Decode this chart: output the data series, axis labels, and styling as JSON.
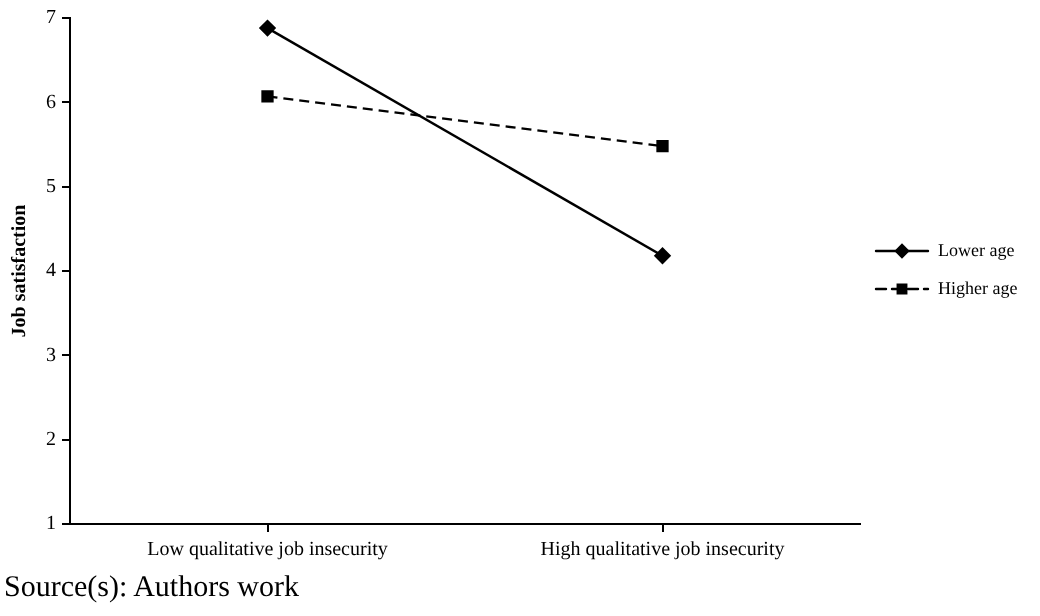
{
  "chart_data": {
    "type": "line",
    "ylabel": "Job satisfaction",
    "categories": [
      "Low qualitative job insecurity",
      "High qualitative job insecurity"
    ],
    "series": [
      {
        "name": "Lower age",
        "color": "#000000",
        "values": [
          6.88,
          4.18
        ],
        "marker": "diamond",
        "line_style": "solid"
      },
      {
        "name": "Higher age",
        "color": "#000000",
        "values": [
          6.07,
          5.48
        ],
        "marker": "square",
        "line_style": "dashed"
      }
    ],
    "ylim": [
      1,
      7
    ],
    "yticks": [
      1,
      2,
      3,
      4,
      5,
      6,
      7
    ],
    "grid": false,
    "legend": "right",
    "annotations": [
      "Source(s): Authors work"
    ]
  }
}
